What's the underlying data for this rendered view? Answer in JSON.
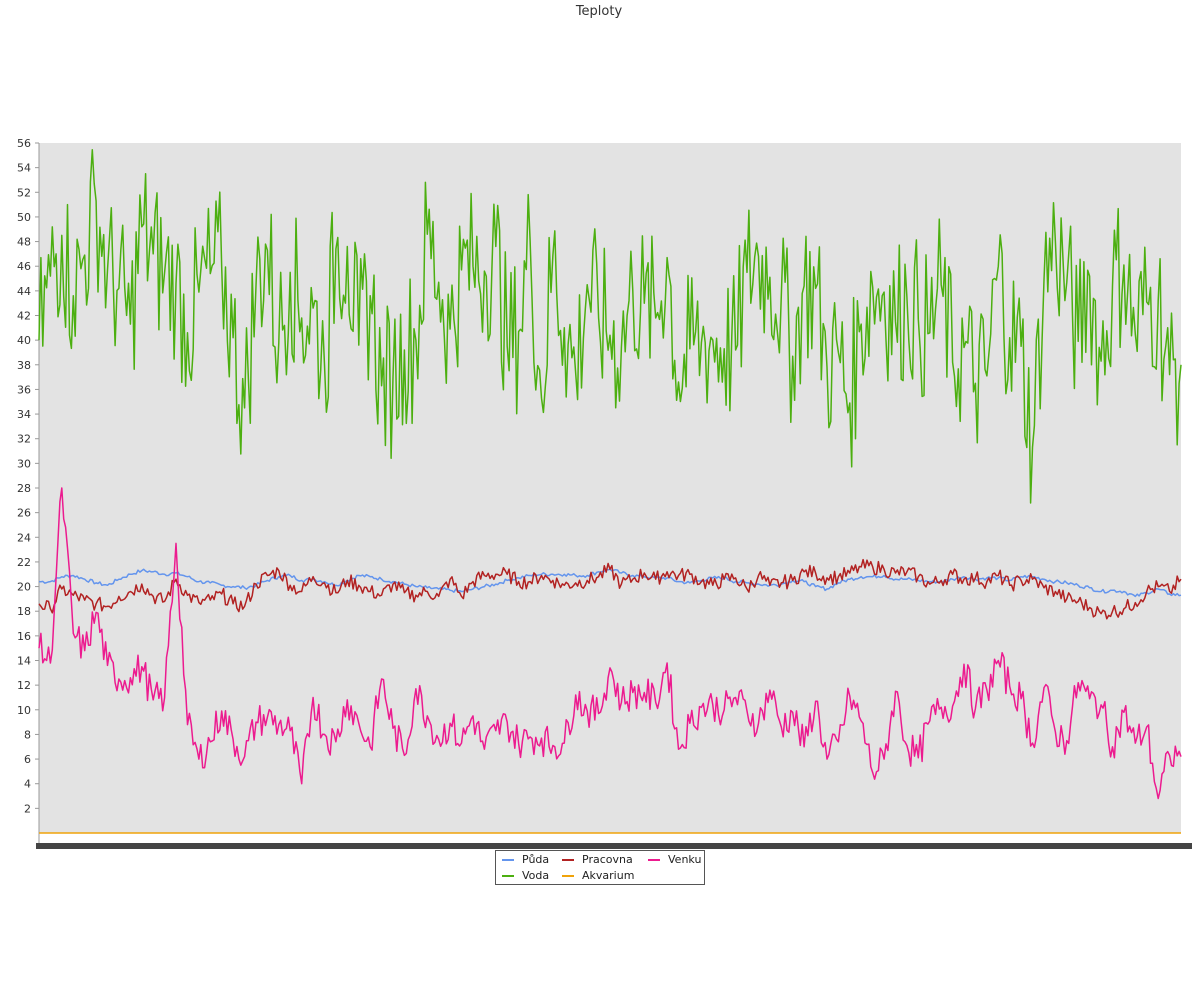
{
  "chart_data": {
    "type": "line",
    "title": "Teploty",
    "xlabel": "",
    "ylabel": "",
    "ylim": [
      0,
      56
    ],
    "yticks": [
      2,
      4,
      6,
      8,
      10,
      12,
      14,
      16,
      18,
      20,
      22,
      24,
      26,
      28,
      30,
      32,
      34,
      36,
      38,
      40,
      42,
      44,
      46,
      48,
      50,
      52,
      54,
      56
    ],
    "grid": false,
    "legend_position": "bottom",
    "x": [
      0,
      0.01,
      0.02,
      0.03,
      0.04,
      0.05,
      0.06,
      0.07,
      0.08,
      0.09,
      0.1,
      0.11,
      0.12,
      0.13,
      0.14,
      0.15,
      0.16,
      0.17,
      0.18,
      0.19,
      0.2,
      0.21,
      0.22,
      0.23,
      0.24,
      0.25,
      0.26,
      0.27,
      0.28,
      0.29,
      0.3,
      0.31,
      0.32,
      0.33,
      0.34,
      0.35,
      0.36,
      0.37,
      0.38,
      0.39,
      0.4,
      0.41,
      0.42,
      0.43,
      0.44,
      0.45,
      0.46,
      0.47,
      0.48,
      0.49,
      0.5,
      0.51,
      0.52,
      0.53,
      0.54,
      0.55,
      0.56,
      0.57,
      0.58,
      0.59,
      0.6,
      0.61,
      0.62,
      0.63,
      0.64,
      0.65,
      0.66,
      0.67,
      0.68,
      0.69,
      0.7,
      0.71,
      0.72,
      0.73,
      0.74,
      0.75,
      0.76,
      0.77,
      0.78,
      0.79,
      0.8,
      0.81,
      0.82,
      0.83,
      0.84,
      0.85,
      0.86,
      0.87,
      0.88,
      0.89,
      0.9,
      0.91,
      0.92,
      0.93,
      0.94,
      0.95,
      0.96,
      0.97,
      0.98,
      0.99,
      1
    ],
    "series": [
      {
        "name": "Půda",
        "color": "#6495ed",
        "values": [
          20.4,
          20.4,
          20.8,
          20.9,
          20.6,
          20.3,
          20.1,
          20.6,
          21.0,
          21.3,
          21.2,
          21.0,
          21.1,
          20.8,
          20.4,
          20.3,
          20.1,
          20.0,
          19.9,
          20.1,
          20.5,
          20.8,
          20.9,
          20.5,
          20.6,
          20.4,
          20.1,
          20.5,
          20.9,
          20.8,
          20.6,
          20.4,
          20.2,
          20.0,
          19.9,
          19.8,
          19.7,
          19.6,
          19.8,
          20.0,
          20.2,
          20.5,
          20.7,
          20.9,
          21.0,
          21.0,
          21.0,
          20.9,
          20.9,
          21.2,
          21.4,
          21.1,
          20.9,
          20.8,
          20.7,
          20.7,
          20.4,
          20.3,
          20.5,
          20.7,
          20.7,
          20.4,
          20.3,
          20.2,
          20.1,
          20.2,
          20.5,
          20.4,
          20.0,
          19.8,
          20.3,
          20.6,
          20.8,
          20.8,
          20.9,
          20.6,
          20.6,
          20.5,
          20.4,
          20.4,
          20.6,
          20.8,
          20.6,
          20.7,
          20.7,
          20.5,
          20.8,
          20.8,
          20.6,
          20.4,
          20.3,
          20.1,
          19.9,
          19.6,
          19.7,
          19.6,
          19.2,
          19.5,
          19.8,
          19.4,
          19.3
        ]
      },
      {
        "name": "Pracovna",
        "color": "#b22222",
        "values": [
          18.6,
          18.2,
          19.8,
          19.3,
          18.9,
          18.6,
          18.4,
          19.2,
          19.6,
          20.2,
          19.2,
          18.8,
          20.6,
          19.3,
          18.7,
          18.9,
          19.4,
          18.6,
          18.4,
          20.2,
          20.9,
          21.3,
          20.1,
          19.6,
          20.8,
          20.3,
          19.5,
          20.5,
          20.1,
          19.6,
          19.3,
          20.2,
          19.5,
          19.3,
          19.6,
          19.2,
          20.6,
          19.2,
          20.4,
          20.9,
          21.0,
          21.0,
          20.4,
          20.4,
          20.9,
          20.5,
          20.1,
          20.3,
          20.5,
          20.8,
          21.4,
          20.2,
          20.6,
          21.1,
          20.6,
          21.2,
          20.9,
          21.0,
          20.4,
          20.1,
          20.6,
          20.7,
          19.8,
          20.9,
          20.1,
          20.3,
          20.5,
          21.2,
          21.1,
          20.7,
          20.8,
          21.1,
          21.6,
          21.6,
          21.4,
          21.1,
          21.2,
          20.8,
          20.2,
          20.5,
          21.0,
          20.6,
          20.7,
          20.4,
          20.9,
          20.1,
          20.5,
          20.6,
          19.9,
          19.6,
          19.0,
          18.8,
          18.3,
          17.8,
          18.0,
          18.2,
          18.7,
          19.6,
          20.0,
          19.6,
          20.6
        ]
      },
      {
        "name": "Voda",
        "color": "#4caf10",
        "values": [
          40.0,
          45.2,
          48.5,
          43.6,
          46.9,
          51.3,
          45.7,
          44.2,
          41.3,
          49.2,
          47.0,
          45.5,
          44.6,
          40.6,
          43.9,
          45.4,
          45.9,
          40.2,
          34.5,
          44.4,
          47.3,
          39.8,
          45.5,
          41.8,
          42.6,
          38.0,
          47.4,
          47.6,
          39.6,
          43.6,
          36.3,
          37.0,
          39.2,
          40.0,
          48.6,
          44.7,
          40.9,
          45.7,
          46.0,
          45.6,
          47.6,
          39.5,
          40.7,
          48.1,
          35.3,
          46.9,
          41.0,
          37.3,
          44.5,
          41.8,
          40.4,
          39.4,
          44.0,
          43.0,
          41.8,
          46.7,
          36.6,
          39.3,
          39.8,
          40.0,
          39.3,
          39.2,
          45.5,
          46.8,
          45.1,
          43.6,
          38.7,
          44.4,
          44.2,
          37.8,
          39.0,
          34.9,
          41.3,
          44.3,
          43.9,
          41.5,
          43.5,
          41.7,
          40.6,
          44.5,
          38.2,
          39.4,
          36.5,
          37.1,
          46.0,
          40.2,
          39.5,
          31.3,
          44.9,
          48.0,
          44.7,
          39.9,
          45.2,
          38.3,
          44.4,
          46.1,
          40.5,
          43.1,
          43.2,
          37.2,
          38.0
        ]
      },
      {
        "name": "Akvarium",
        "color": "#f0a30a",
        "values": [
          0,
          0,
          0,
          0,
          0,
          0,
          0,
          0,
          0,
          0,
          0,
          0,
          0,
          0,
          0,
          0,
          0,
          0,
          0,
          0,
          0,
          0,
          0,
          0,
          0,
          0,
          0,
          0,
          0,
          0,
          0,
          0,
          0,
          0,
          0,
          0,
          0,
          0,
          0,
          0,
          0,
          0,
          0,
          0,
          0,
          0,
          0,
          0,
          0,
          0,
          0,
          0,
          0,
          0,
          0,
          0,
          0,
          0,
          0,
          0,
          0,
          0,
          0,
          0,
          0,
          0,
          0,
          0,
          0,
          0,
          0,
          0,
          0,
          0,
          0,
          0,
          0,
          0,
          0,
          0,
          0,
          0,
          0,
          0,
          0,
          0,
          0,
          0,
          0,
          0,
          0,
          0,
          0,
          0,
          0,
          0,
          0,
          0,
          0,
          0,
          0
        ]
      },
      {
        "name": "Venku",
        "color": "#ec1b8f",
        "values": [
          15.0,
          13.8,
          28.0,
          16.2,
          14.8,
          17.9,
          13.6,
          12.5,
          12.6,
          13.5,
          10.8,
          11.0,
          23.5,
          8.8,
          6.0,
          7.4,
          9.9,
          7.6,
          6.2,
          9.0,
          9.4,
          8.8,
          8.3,
          4.0,
          11.0,
          8.0,
          7.4,
          10.8,
          8.9,
          7.0,
          12.5,
          8.5,
          6.3,
          11.7,
          9.5,
          7.6,
          8.9,
          7.3,
          9.5,
          6.8,
          8.3,
          9.0,
          7.3,
          7.8,
          7.7,
          7.1,
          7.3,
          11.2,
          9.9,
          9.7,
          13.4,
          10.6,
          11.4,
          11.4,
          10.6,
          13.8,
          6.8,
          8.9,
          10.2,
          10.4,
          10.0,
          11.0,
          9.9,
          8.9,
          11.6,
          8.6,
          9.8,
          7.0,
          10.7,
          6.0,
          7.4,
          11.1,
          9.1,
          4.9,
          6.0,
          11.5,
          7.1,
          6.1,
          9.1,
          10.2,
          10.3,
          13.7,
          10.1,
          11.6,
          14.0,
          11.9,
          10.9,
          7.3,
          11.8,
          8.2,
          7.5,
          12.2,
          10.9,
          10.4,
          7.0,
          9.8,
          7.3,
          8.6,
          2.8,
          6.3,
          6.2
        ]
      }
    ]
  },
  "legend": {
    "entries": [
      "Půda",
      "Pracovna",
      "Venku",
      "Voda",
      "Akvarium"
    ]
  }
}
